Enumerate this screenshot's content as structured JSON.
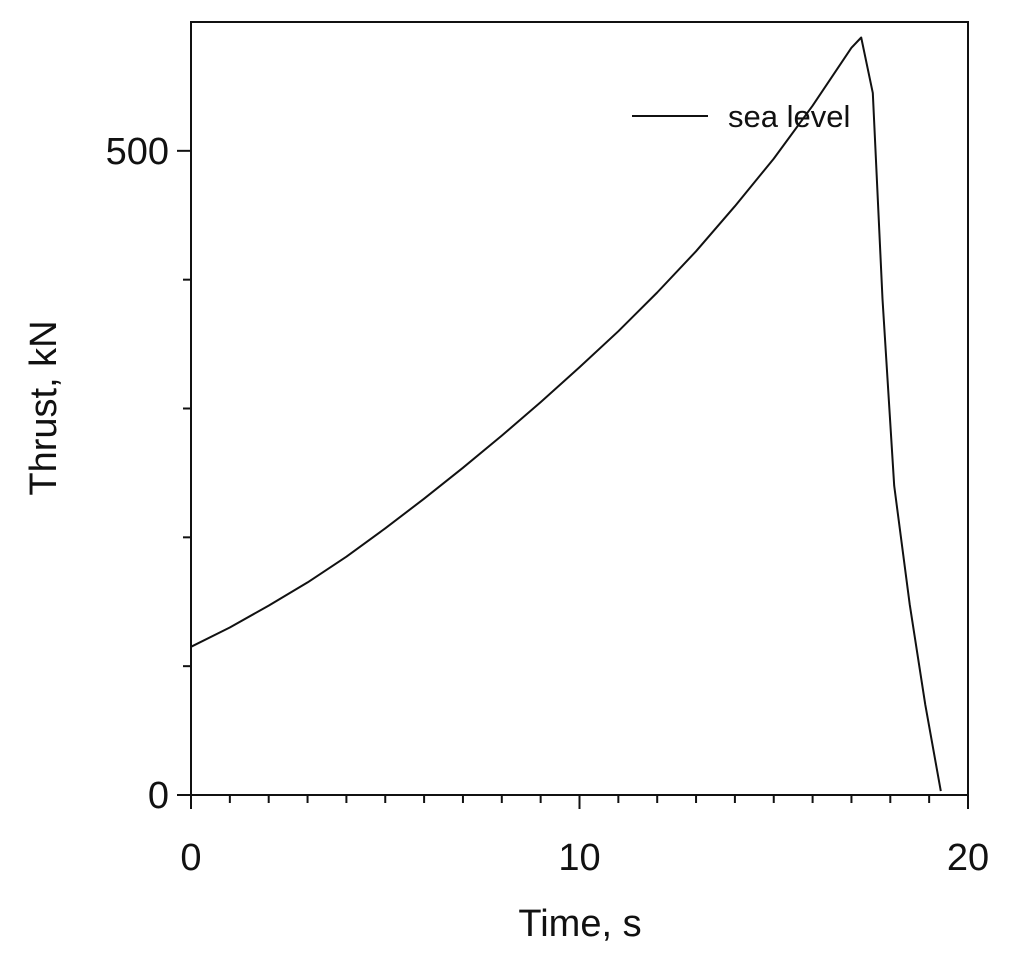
{
  "chart_data": {
    "type": "line",
    "title": "",
    "xlabel": "Time, s",
    "ylabel": "Thrust, kN",
    "xlim": [
      0,
      20
    ],
    "ylim": [
      0,
      600
    ],
    "x_ticks": [
      0,
      10,
      20
    ],
    "x_tick_labels": [
      "0",
      "10",
      "20"
    ],
    "x_minor_step": 1,
    "y_ticks": [
      0,
      500
    ],
    "y_tick_labels": [
      "0",
      "500"
    ],
    "y_minor_step": 100,
    "grid": false,
    "legend_position": "top-right",
    "line_color": "#111111",
    "series": [
      {
        "name": "sea level",
        "x": [
          0,
          1,
          2,
          3,
          4,
          5,
          6,
          7,
          8,
          9,
          10,
          11,
          12,
          13,
          14,
          15,
          16,
          17,
          17.25,
          17.55,
          17.8,
          18.1,
          18.5,
          18.9,
          19.3
        ],
        "y": [
          115,
          130,
          147,
          165,
          185,
          207,
          230,
          254,
          279,
          305,
          332,
          360,
          390,
          422,
          457,
          494,
          535,
          580,
          588,
          545,
          385,
          240,
          148,
          70,
          3
        ]
      }
    ]
  }
}
